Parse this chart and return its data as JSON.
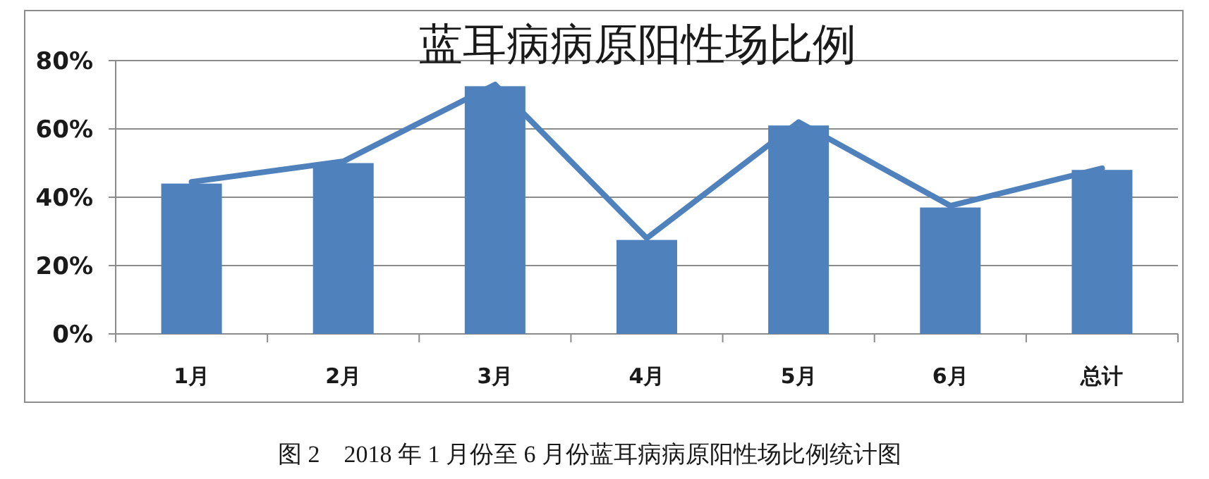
{
  "chart_data": {
    "type": "bar",
    "title": "蓝耳病病原阳性场比例",
    "categories": [
      "1月",
      "2月",
      "3月",
      "4月",
      "5月",
      "6月",
      "总计"
    ],
    "series": [
      {
        "color": "#4f81bd",
        "values": [
          44,
          50,
          72.5,
          27.5,
          61,
          37,
          48
        ]
      },
      {
        "type": "line",
        "color": "#4f81bd",
        "values": [
          44.5,
          50.5,
          73,
          28,
          62,
          37.5,
          48.5
        ]
      }
    ],
    "ylim": [
      0,
      80
    ],
    "yticks": [
      {
        "value": 0,
        "label": "0%"
      },
      {
        "value": 20,
        "label": "20%"
      },
      {
        "value": 40,
        "label": "40%"
      },
      {
        "value": 60,
        "label": "60%"
      },
      {
        "value": 80,
        "label": "80%"
      }
    ],
    "grid": "y",
    "annotations": [
      "图 2　2018 年 1 月份至 6 月份蓝耳病病原阳性场比例统计图"
    ]
  }
}
